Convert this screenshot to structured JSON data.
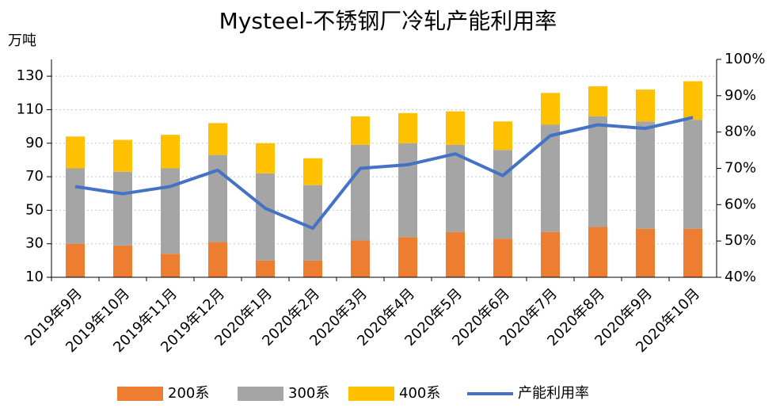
{
  "chart_data": {
    "type": "bar",
    "title": "Mysteel-不锈钢厂冷轧产能利用率",
    "y_label": "万吨",
    "categories": [
      "2019年9月",
      "2019年10月",
      "2019年11月",
      "2019年12月",
      "2020年1月",
      "2020年2月",
      "2020年3月",
      "2020年4月",
      "2020年5月",
      "2020年6月",
      "2020年7月",
      "2020年8月",
      "2020年9月",
      "2020年10月"
    ],
    "series": [
      {
        "name": "200系",
        "type": "bar",
        "color": "#ED7D31",
        "values": [
          30,
          29,
          24,
          31,
          20,
          20,
          32,
          34,
          37,
          33,
          37,
          40,
          39,
          39
        ]
      },
      {
        "name": "300系",
        "type": "bar",
        "color": "#A5A5A5",
        "values": [
          45,
          44,
          51,
          52,
          52,
          45,
          57,
          56,
          52,
          53,
          64,
          66,
          64,
          65
        ]
      },
      {
        "name": "400系",
        "type": "bar",
        "color": "#FFC000",
        "values": [
          19,
          19,
          20,
          19,
          18,
          16,
          17,
          18,
          20,
          17,
          19,
          18,
          19,
          23
        ]
      },
      {
        "name": "产能利用率",
        "type": "line",
        "axis": "y2",
        "color": "#4472C4",
        "values": [
          65,
          63,
          65,
          69.5,
          59,
          53.5,
          70,
          71,
          74,
          68,
          79,
          82,
          81,
          84
        ]
      }
    ],
    "ylim": [
      10,
      140
    ],
    "yticks": [
      10,
      30,
      50,
      70,
      90,
      110,
      130
    ],
    "y2lim": [
      40,
      100
    ],
    "y2ticks": [
      {
        "value": 40,
        "label": "40%"
      },
      {
        "value": 50,
        "label": "50%"
      },
      {
        "value": 60,
        "label": "60%"
      },
      {
        "value": 70,
        "label": "70%"
      },
      {
        "value": 80,
        "label": "80%"
      },
      {
        "value": 90,
        "label": "90%"
      },
      {
        "value": 100,
        "label": "100%"
      }
    ],
    "grid": true
  }
}
